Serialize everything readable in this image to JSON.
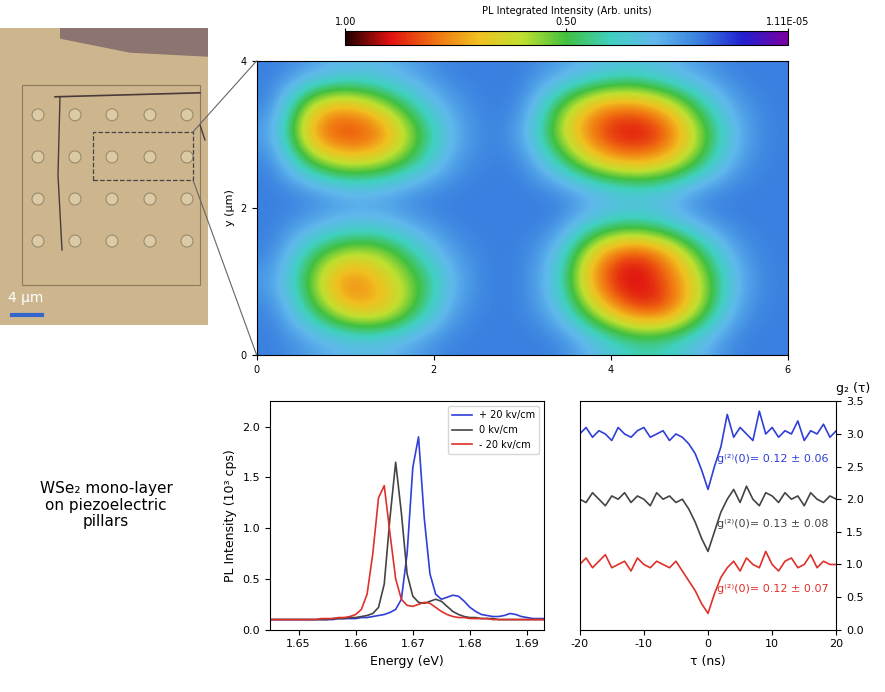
{
  "image": {
    "scale_bar": "4 µm"
  },
  "caption": "WSe₂ mono-layer\non piezoelectric\npillars",
  "chart_data": [
    {
      "type": "heatmap",
      "xlim": [
        0,
        6
      ],
      "ylim": [
        0,
        4
      ],
      "xticks": [
        0,
        2,
        4,
        6
      ],
      "yticks": [
        0,
        2,
        4
      ],
      "y_label": "y (µm)",
      "cells": [
        [
          0.2,
          0.25,
          0.3,
          0.3,
          0.25,
          0.2,
          0.2,
          0.2,
          0.2,
          0.3,
          0.4,
          0.4,
          0.3,
          0.2,
          0.2
        ],
        [
          0.2,
          0.45,
          0.7,
          0.75,
          0.5,
          0.25,
          0.2,
          0.2,
          0.3,
          0.6,
          0.85,
          0.9,
          0.6,
          0.25,
          0.2
        ],
        [
          0.25,
          0.55,
          0.85,
          0.7,
          0.55,
          0.3,
          0.2,
          0.2,
          0.35,
          0.8,
          0.95,
          0.85,
          0.65,
          0.3,
          0.2
        ],
        [
          0.2,
          0.45,
          0.6,
          0.6,
          0.4,
          0.25,
          0.2,
          0.2,
          0.3,
          0.7,
          0.9,
          0.8,
          0.5,
          0.25,
          0.2
        ],
        [
          0.2,
          0.25,
          0.3,
          0.3,
          0.25,
          0.2,
          0.2,
          0.2,
          0.2,
          0.35,
          0.4,
          0.35,
          0.25,
          0.2,
          0.2
        ],
        [
          0.2,
          0.2,
          0.25,
          0.25,
          0.2,
          0.2,
          0.2,
          0.2,
          0.2,
          0.25,
          0.3,
          0.3,
          0.2,
          0.2,
          0.2
        ],
        [
          0.2,
          0.5,
          0.65,
          0.6,
          0.45,
          0.25,
          0.2,
          0.2,
          0.4,
          0.65,
          0.75,
          0.7,
          0.5,
          0.25,
          0.2
        ],
        [
          0.25,
          0.8,
          0.9,
          0.85,
          0.55,
          0.3,
          0.2,
          0.25,
          0.6,
          0.85,
          0.95,
          0.9,
          0.6,
          0.3,
          0.2
        ],
        [
          0.2,
          0.65,
          0.75,
          0.6,
          0.4,
          0.25,
          0.2,
          0.2,
          0.5,
          0.75,
          0.8,
          0.7,
          0.45,
          0.25,
          0.2
        ],
        [
          0.2,
          0.25,
          0.3,
          0.3,
          0.25,
          0.2,
          0.2,
          0.2,
          0.25,
          0.3,
          0.35,
          0.3,
          0.25,
          0.2,
          0.2
        ]
      ],
      "colorbar": {
        "label": "PL Integrated Intensity (Arb. units)",
        "range": [
          1.11e-05,
          1.0
        ],
        "ticks": [
          {
            "value": 1.0,
            "label": "1.00"
          },
          {
            "value": 0.5,
            "label": "0.50"
          },
          {
            "value": 1.11e-05,
            "label": "1.11E-05"
          }
        ]
      }
    },
    {
      "type": "line",
      "x_label": "Energy (eV)",
      "y_label": "PL Intensity (10³ cps)",
      "xlim": [
        1.645,
        1.693
      ],
      "ylim": [
        0,
        2.25
      ],
      "xticks": [
        1.65,
        1.66,
        1.67,
        1.68,
        1.69
      ],
      "yticks": [
        {
          "value": 0,
          "label": "0.0"
        },
        {
          "value": 0.5,
          "label": "0.5"
        },
        {
          "value": 1.0,
          "label": "1.0"
        },
        {
          "value": 1.5,
          "label": "1.5"
        },
        {
          "value": 2.0,
          "label": "2.0"
        }
      ],
      "legend": "upper right",
      "x": [
        1.645,
        1.646,
        1.647,
        1.648,
        1.649,
        1.65,
        1.651,
        1.652,
        1.653,
        1.654,
        1.655,
        1.656,
        1.657,
        1.658,
        1.659,
        1.66,
        1.661,
        1.662,
        1.663,
        1.664,
        1.665,
        1.666,
        1.667,
        1.668,
        1.669,
        1.67,
        1.671,
        1.672,
        1.673,
        1.674,
        1.675,
        1.676,
        1.677,
        1.678,
        1.679,
        1.68,
        1.681,
        1.682,
        1.683,
        1.684,
        1.685,
        1.686,
        1.687,
        1.688,
        1.689,
        1.69,
        1.691,
        1.692,
        1.693
      ],
      "series": [
        {
          "name": "+ 20 kv/cm",
          "color": "#2f3fd8",
          "values": [
            0.1,
            0.1,
            0.1,
            0.1,
            0.1,
            0.1,
            0.1,
            0.1,
            0.1,
            0.1,
            0.1,
            0.1,
            0.11,
            0.11,
            0.11,
            0.11,
            0.12,
            0.12,
            0.13,
            0.14,
            0.15,
            0.17,
            0.2,
            0.3,
            0.75,
            1.6,
            1.9,
            1.1,
            0.55,
            0.35,
            0.3,
            0.32,
            0.34,
            0.33,
            0.28,
            0.22,
            0.18,
            0.15,
            0.14,
            0.13,
            0.13,
            0.14,
            0.16,
            0.15,
            0.13,
            0.12,
            0.11,
            0.11,
            0.11
          ]
        },
        {
          "name": "0 kv/cm",
          "color": "#444444",
          "values": [
            0.1,
            0.1,
            0.1,
            0.1,
            0.1,
            0.1,
            0.1,
            0.1,
            0.1,
            0.1,
            0.1,
            0.11,
            0.11,
            0.11,
            0.12,
            0.12,
            0.13,
            0.14,
            0.16,
            0.22,
            0.45,
            1.1,
            1.65,
            1.15,
            0.55,
            0.33,
            0.27,
            0.26,
            0.28,
            0.3,
            0.28,
            0.23,
            0.18,
            0.15,
            0.13,
            0.12,
            0.12,
            0.11,
            0.11,
            0.11,
            0.1,
            0.1,
            0.1,
            0.1,
            0.1,
            0.1,
            0.1,
            0.1,
            0.1
          ]
        },
        {
          "name": "- 20 kv/cm",
          "color": "#e0302a",
          "values": [
            0.1,
            0.1,
            0.1,
            0.1,
            0.1,
            0.1,
            0.1,
            0.1,
            0.1,
            0.11,
            0.11,
            0.11,
            0.12,
            0.12,
            0.13,
            0.15,
            0.2,
            0.35,
            0.75,
            1.3,
            1.42,
            0.95,
            0.5,
            0.3,
            0.24,
            0.23,
            0.25,
            0.27,
            0.26,
            0.22,
            0.18,
            0.15,
            0.13,
            0.12,
            0.12,
            0.11,
            0.11,
            0.11,
            0.11,
            0.1,
            0.1,
            0.1,
            0.1,
            0.1,
            0.1,
            0.1,
            0.1,
            0.1,
            0.1
          ]
        }
      ]
    },
    {
      "type": "line",
      "x_label": "τ (ns)",
      "y_label": "g₂ (τ)",
      "xlim": [
        -20,
        20
      ],
      "ylim": [
        0,
        3.5
      ],
      "xticks": [
        -20,
        -10,
        0,
        10,
        20
      ],
      "yticks": [
        {
          "value": 0,
          "label": "0.0"
        },
        {
          "value": 0.5,
          "label": "0.5"
        },
        {
          "value": 1.0,
          "label": "1.0"
        },
        {
          "value": 1.5,
          "label": "1.5"
        },
        {
          "value": 2.0,
          "label": "2.0"
        },
        {
          "value": 2.5,
          "label": "2.5"
        },
        {
          "value": 3.0,
          "label": "3.0"
        },
        {
          "value": 3.5,
          "label": "3.5"
        }
      ],
      "x": [
        -20,
        -19,
        -18,
        -17,
        -16,
        -15,
        -14,
        -13,
        -12,
        -11,
        -10,
        -9,
        -8,
        -7,
        -6,
        -5,
        -4,
        -3,
        -2,
        -1,
        0,
        1,
        2,
        3,
        4,
        5,
        6,
        7,
        8,
        9,
        10,
        11,
        12,
        13,
        14,
        15,
        16,
        17,
        18,
        19,
        20
      ],
      "series": [
        {
          "color": "#2f3fd8",
          "annotation": "g⁽²⁾(0)= 0.12 ± 0.06",
          "values": [
            3.0,
            3.1,
            2.95,
            3.05,
            3.0,
            2.9,
            3.1,
            3.0,
            2.95,
            3.05,
            3.1,
            2.95,
            3.0,
            3.05,
            2.9,
            3.0,
            2.95,
            2.85,
            2.7,
            2.45,
            2.15,
            2.5,
            2.8,
            3.3,
            2.95,
            3.1,
            3.0,
            2.9,
            3.35,
            3.0,
            3.1,
            2.95,
            3.05,
            3.0,
            3.2,
            2.9,
            3.05,
            3.0,
            3.15,
            2.95,
            3.05
          ]
        },
        {
          "color": "#444444",
          "annotation": "g⁽²⁾(0)= 0.13 ± 0.08",
          "values": [
            2.0,
            1.95,
            2.1,
            2.0,
            1.9,
            2.05,
            2.0,
            2.1,
            1.95,
            2.05,
            2.0,
            1.9,
            2.1,
            2.0,
            2.05,
            1.95,
            2.0,
            1.85,
            1.65,
            1.4,
            1.2,
            1.5,
            1.8,
            2.0,
            2.15,
            1.95,
            2.2,
            2.0,
            1.9,
            2.1,
            2.05,
            1.95,
            2.1,
            2.0,
            2.05,
            1.9,
            2.1,
            2.0,
            1.95,
            2.05,
            2.0
          ]
        },
        {
          "color": "#e0302a",
          "annotation": "g⁽²⁾(0)= 0.12 ± 0.07",
          "values": [
            1.0,
            1.1,
            0.95,
            1.05,
            1.15,
            0.95,
            1.0,
            1.05,
            0.9,
            1.1,
            1.0,
            0.95,
            1.05,
            1.0,
            0.95,
            1.05,
            0.9,
            0.75,
            0.6,
            0.4,
            0.25,
            0.55,
            0.8,
            0.95,
            1.05,
            0.9,
            1.1,
            1.0,
            0.95,
            1.2,
            1.0,
            0.9,
            1.05,
            1.1,
            0.95,
            1.0,
            1.15,
            0.95,
            1.05,
            1.0,
            1.0
          ]
        }
      ]
    }
  ]
}
